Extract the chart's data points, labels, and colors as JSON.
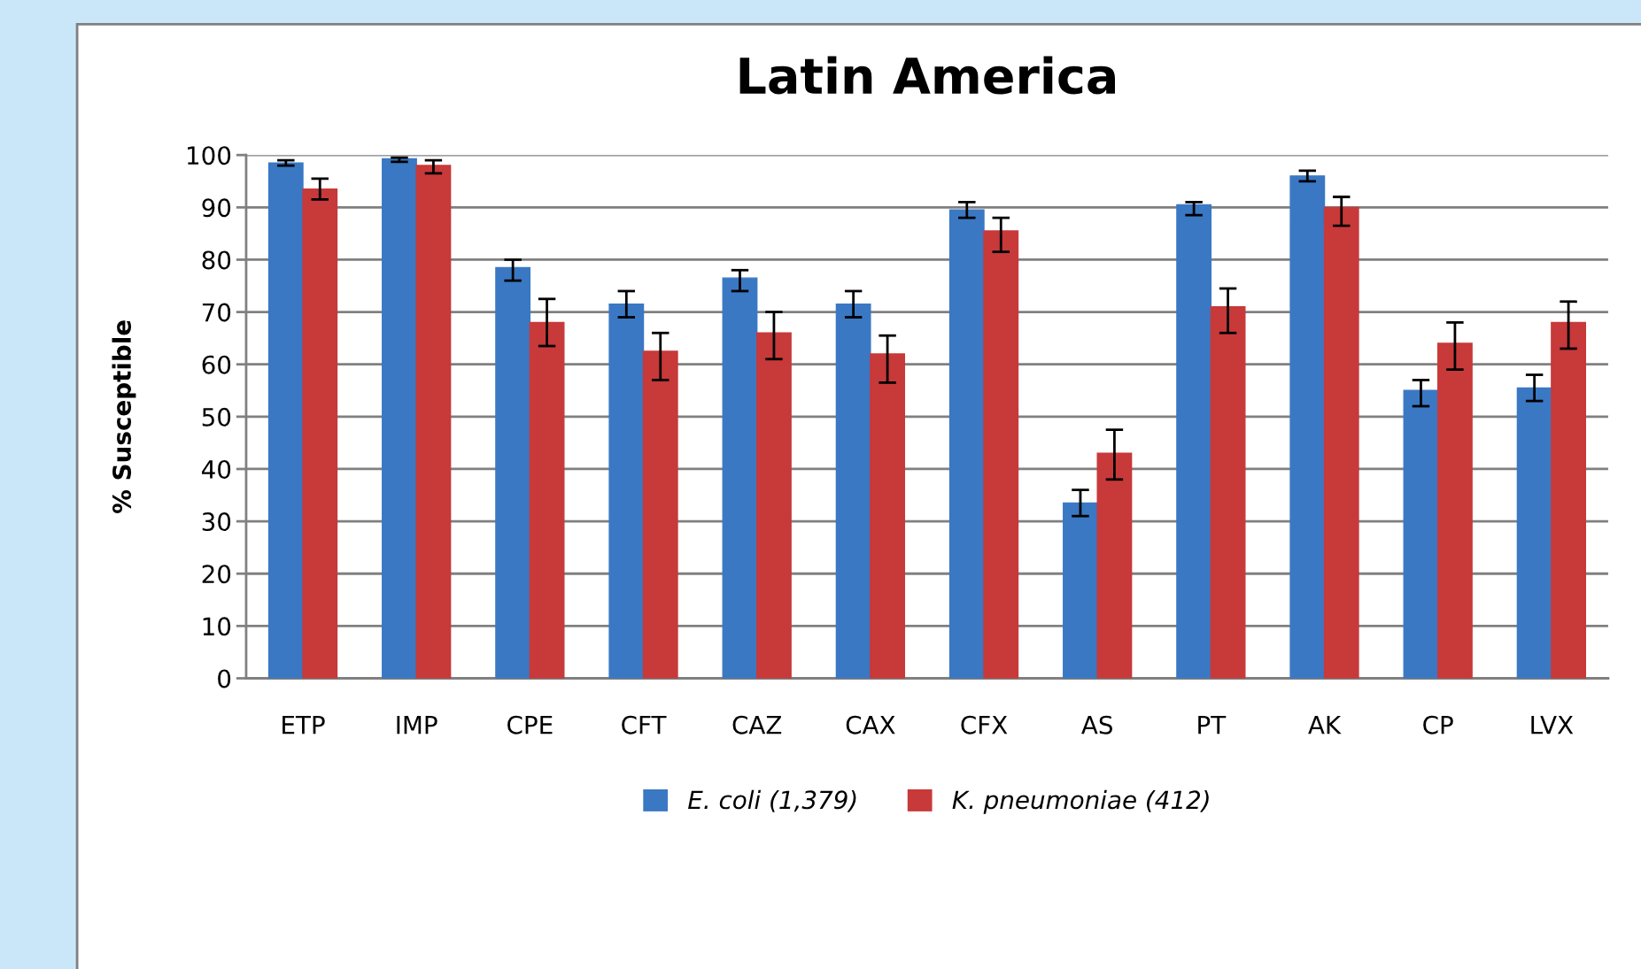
{
  "chart_data": {
    "type": "bar",
    "title": "Latin America",
    "ylabel": "% Susceptible",
    "categories": [
      "ETP",
      "IMP",
      "CPE",
      "CFT",
      "CAZ",
      "CAX",
      "CFX",
      "AS",
      "PT",
      "AK",
      "CP",
      "LVX"
    ],
    "series": [
      {
        "name": "E. coli (1,379)",
        "color": "#3a78c4",
        "values": [
          98.5,
          99.3,
          78.5,
          71.5,
          76.5,
          71.5,
          89.5,
          33.5,
          90.5,
          96,
          55,
          55.5
        ],
        "errors": [
          [
            98,
            99
          ],
          [
            98.7,
            99.5
          ],
          [
            76,
            80
          ],
          [
            69,
            74
          ],
          [
            74,
            78
          ],
          [
            69,
            74
          ],
          [
            88,
            91
          ],
          [
            31,
            36
          ],
          [
            88.5,
            91
          ],
          [
            95,
            97
          ],
          [
            52,
            57
          ],
          [
            53,
            58
          ]
        ]
      },
      {
        "name": "K. pneumoniae (412)",
        "color": "#c8393a",
        "values": [
          93.5,
          98,
          68,
          62.5,
          66,
          62,
          85.5,
          43,
          71,
          90,
          64,
          68
        ],
        "errors": [
          [
            91.5,
            95.5
          ],
          [
            96.5,
            99
          ],
          [
            63.5,
            72.5
          ],
          [
            57,
            66
          ],
          [
            61,
            70
          ],
          [
            56.5,
            65.5
          ],
          [
            81.5,
            88
          ],
          [
            38,
            47.5
          ],
          [
            66,
            74.5
          ],
          [
            86.5,
            92
          ],
          [
            59,
            68
          ],
          [
            63,
            72
          ]
        ]
      }
    ],
    "ylim": [
      0,
      100
    ],
    "yticks": [
      0,
      10,
      20,
      30,
      40,
      50,
      60,
      70,
      80,
      90,
      100
    ],
    "grid": "y",
    "legend": "bottom"
  }
}
